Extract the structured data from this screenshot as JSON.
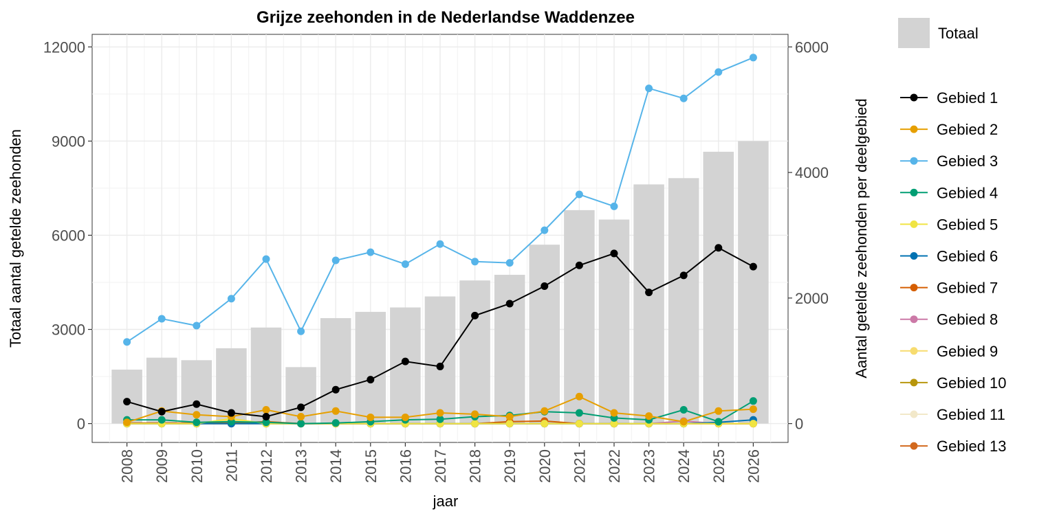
{
  "chart_data": {
    "type": "bar",
    "title": "Grijze zeehonden in de Nederlandse Waddenzee",
    "xlabel": "jaar",
    "ylabel_left": "Totaal aantal getelde zeehonden",
    "ylabel_right": "Aantal getelde zeehonden per deelgebied",
    "ylim_left": [
      -600,
      12400
    ],
    "ylim_right": [
      -300,
      6200
    ],
    "yticks_left": [
      0,
      3000,
      6000,
      9000,
      12000
    ],
    "yticks_right": [
      0,
      2000,
      4000,
      6000
    ],
    "grid": true,
    "legend_position": "right",
    "categories": [
      "2008",
      "2009",
      "2010",
      "2011",
      "2012",
      "2013",
      "2014",
      "2015",
      "2016",
      "2017",
      "2018",
      "2019",
      "2020",
      "2021",
      "2022",
      "2023",
      "2024",
      "2025",
      "2026"
    ],
    "bars": {
      "name": "Totaal",
      "axis": "left",
      "color": "#d3d3d3",
      "values": [
        1720,
        2100,
        2020,
        2400,
        3060,
        1800,
        3360,
        3560,
        3700,
        4050,
        4560,
        4740,
        5700,
        6800,
        6500,
        7620,
        7820,
        8660,
        9000
      ]
    },
    "series": [
      {
        "name": "Gebied 1",
        "color": "#000000",
        "axis": "right",
        "values": [
          350,
          190,
          310,
          170,
          110,
          260,
          540,
          700,
          990,
          910,
          1720,
          1910,
          2190,
          2520,
          2710,
          2090,
          2360,
          2800,
          2500
        ]
      },
      {
        "name": "Gebied 2",
        "color": "#E69F00",
        "axis": "right",
        "values": [
          20,
          200,
          140,
          110,
          220,
          110,
          200,
          100,
          100,
          170,
          150,
          110,
          200,
          430,
          170,
          120,
          30,
          200,
          230
        ]
      },
      {
        "name": "Gebied 3",
        "color": "#56B4E9",
        "axis": "right",
        "values": [
          1300,
          1670,
          1560,
          1990,
          2620,
          1470,
          2600,
          2730,
          2540,
          2860,
          2580,
          2560,
          3080,
          3650,
          3460,
          5340,
          5180,
          5600,
          5830
        ]
      },
      {
        "name": "Gebied 4",
        "color": "#009E73",
        "axis": "right",
        "values": [
          60,
          60,
          20,
          30,
          20,
          0,
          10,
          30,
          60,
          70,
          110,
          130,
          190,
          170,
          90,
          60,
          220,
          30,
          360
        ]
      },
      {
        "name": "Gebied 5",
        "color": "#F0E442",
        "axis": "right",
        "values": [
          0,
          0,
          0,
          80,
          0,
          0,
          0,
          0,
          0,
          0,
          0,
          0,
          0,
          0,
          0,
          0,
          0,
          0,
          0
        ]
      },
      {
        "name": "Gebied 6",
        "color": "#0072B2",
        "axis": "right",
        "values": [
          0,
          0,
          0,
          0,
          0,
          0,
          0,
          0,
          0,
          0,
          0,
          0,
          0,
          0,
          0,
          0,
          0,
          20,
          60
        ]
      },
      {
        "name": "Gebied 7",
        "color": "#D55E00",
        "axis": "right",
        "values": [
          10,
          10,
          10,
          10,
          30,
          0,
          0,
          0,
          0,
          0,
          0,
          30,
          40,
          0,
          0,
          0,
          0,
          0,
          0
        ]
      },
      {
        "name": "Gebied 8",
        "color": "#CC79A7",
        "axis": "right",
        "values": [
          0,
          0,
          0,
          0,
          0,
          0,
          0,
          0,
          0,
          0,
          0,
          0,
          0,
          0,
          0,
          0,
          40,
          0,
          0
        ]
      },
      {
        "name": "Gebied 9",
        "color": "#F7DC6F",
        "axis": "right",
        "values": [
          0,
          0,
          0,
          60,
          0,
          0,
          0,
          0,
          0,
          0,
          0,
          0,
          0,
          0,
          0,
          0,
          0,
          0,
          0
        ]
      },
      {
        "name": "Gebied 10",
        "color": "#B8960C",
        "axis": "right",
        "values": [
          0,
          0,
          0,
          0,
          0,
          0,
          0,
          0,
          0,
          0,
          0,
          0,
          0,
          0,
          0,
          0,
          0,
          0,
          0
        ]
      },
      {
        "name": "Gebied 11",
        "color": "#F2E8C9",
        "axis": "right",
        "values": [
          0,
          0,
          0,
          0,
          0,
          0,
          0,
          0,
          0,
          0,
          0,
          0,
          0,
          0,
          0,
          0,
          0,
          0,
          0
        ]
      },
      {
        "name": "Gebied 13",
        "color": "#D2691E",
        "axis": "right",
        "values": [
          0,
          0,
          0,
          0,
          20,
          0,
          0,
          0,
          0,
          0,
          0,
          0,
          0,
          0,
          0,
          0,
          0,
          0,
          0
        ]
      }
    ]
  }
}
